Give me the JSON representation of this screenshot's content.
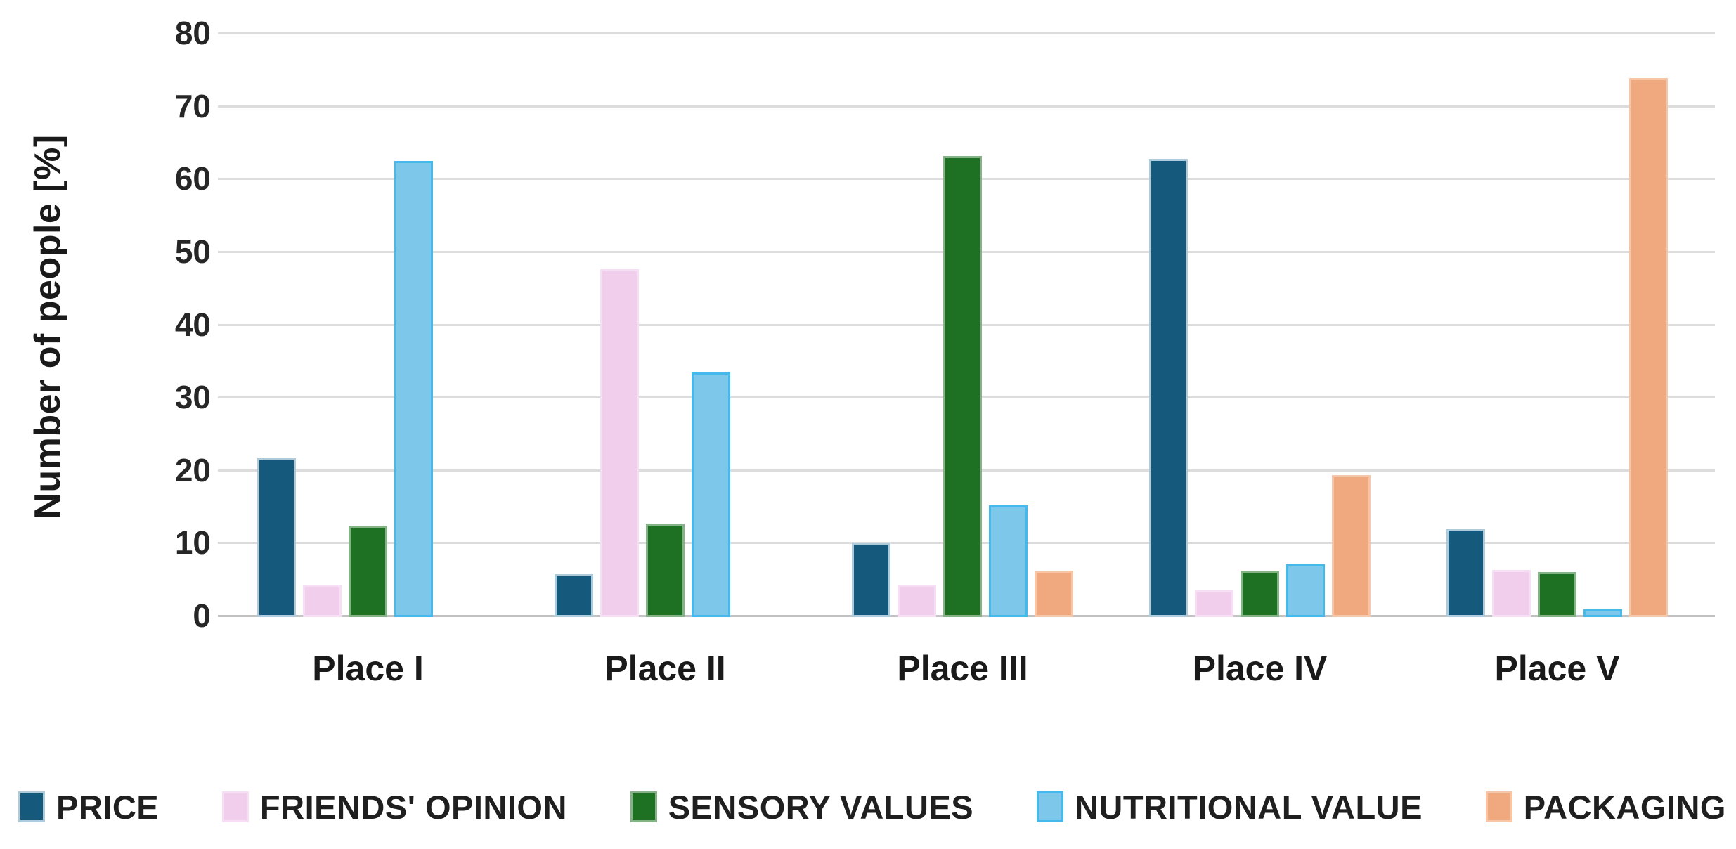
{
  "chart_data": {
    "type": "bar",
    "title": "",
    "xlabel": "",
    "ylabel": "Number of people [%]",
    "ylim": [
      0,
      80
    ],
    "yticks": [
      0,
      10,
      20,
      30,
      40,
      50,
      60,
      70,
      80
    ],
    "grid": true,
    "legend_position": "bottom",
    "categories": [
      "Place I",
      "Place II",
      "Place III",
      "Place IV",
      "Place V"
    ],
    "series": [
      {
        "name": "PRICE",
        "color": "#15597C",
        "border": "#aecbdc",
        "values": [
          21.8,
          5.9,
          10.2,
          62.9,
          12.2
        ]
      },
      {
        "name": "FRIENDS' OPINION",
        "color": "#F0CEEC",
        "border": "#f6dff4",
        "values": [
          4.4,
          47.8,
          4.4,
          3.7,
          6.5
        ]
      },
      {
        "name": "SENSORY VALUES",
        "color": "#1E7023",
        "border": "#85b287",
        "values": [
          12.5,
          12.8,
          63.3,
          6.4,
          6.2
        ]
      },
      {
        "name": "NUTRITIONAL VALUE",
        "color": "#7DC8EA",
        "border": "#45B9EC",
        "values": [
          62.6,
          33.6,
          15.3,
          7.2,
          1.1
        ]
      },
      {
        "name": "PACKAGING",
        "color": "#F0A87E",
        "border": "#f6c6a8",
        "values": [
          0,
          0,
          6.4,
          19.5,
          74.0
        ]
      }
    ],
    "colors": {
      "gridline": "#dcdcdc",
      "axis_line": "#c3c3c3",
      "text": "#1a1a1a",
      "background": "#ffffff"
    }
  }
}
